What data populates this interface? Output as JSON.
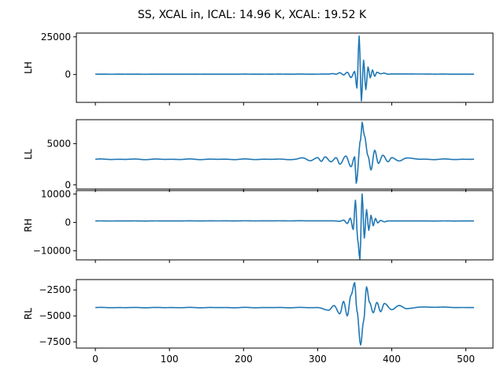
{
  "title": "SS, XCAL in, ICAL: 14.96 K, XCAL: 19.52 K",
  "chart_data": {
    "type": "line",
    "title": "SS, XCAL in, ICAL: 14.96 K, XCAL: 19.52 K",
    "line_color": "#1f77b4",
    "shared_x": {
      "xlim": [
        -25.6,
        536.6
      ],
      "ticks": [
        0,
        100,
        200,
        300,
        400,
        500
      ],
      "tick_labels": [
        "0",
        "100",
        "200",
        "300",
        "400",
        "500"
      ],
      "x_range": [
        0,
        511
      ]
    },
    "panels": [
      {
        "ylabel": "LH",
        "ylim": [
          -18500,
          27500
        ],
        "yticks": [
          0,
          25000
        ],
        "ytick_labels": [
          "0",
          "25000"
        ],
        "baseline": 200,
        "wiggle": 30,
        "x": [
          0,
          300,
          315,
          320,
          325,
          330,
          335,
          340,
          345,
          350,
          353,
          356,
          359,
          362,
          365,
          368,
          371,
          374,
          377,
          380,
          385,
          390,
          395,
          400,
          511
        ],
        "y": [
          200,
          250,
          300,
          600,
          200,
          1200,
          -300,
          1500,
          -2000,
          2000,
          -9000,
          25500,
          -17500,
          9500,
          -10000,
          5000,
          -2200,
          3000,
          -1200,
          1500,
          500,
          900,
          200,
          350,
          200
        ]
      },
      {
        "ylabel": "LL",
        "ylim": [
          -500,
          7900
        ],
        "yticks": [
          0,
          5000
        ],
        "ytick_labels": [
          "0",
          "5000"
        ],
        "baseline": 3100,
        "wiggle": 45,
        "x": [
          0,
          270,
          280,
          290,
          300,
          305,
          310,
          318,
          325,
          330,
          338,
          345,
          350,
          352,
          358,
          360,
          363,
          368,
          372,
          377,
          382,
          388,
          395,
          400,
          410,
          420,
          440,
          511
        ],
        "y": [
          3100,
          3100,
          3250,
          2950,
          3300,
          2850,
          3400,
          2800,
          3300,
          2500,
          3500,
          2200,
          3400,
          200,
          5500,
          7600,
          6000,
          3500,
          1800,
          4200,
          2600,
          3600,
          2800,
          3300,
          2900,
          3250,
          3100,
          3100
        ]
      },
      {
        "ylabel": "RH",
        "ylim": [
          -13200,
          11200
        ],
        "yticks": [
          -10000,
          0,
          10000
        ],
        "ytick_labels": [
          "−10000",
          "0",
          "10000"
        ],
        "baseline": 500,
        "wiggle": 25,
        "x": [
          0,
          320,
          330,
          335,
          340,
          344,
          348,
          351,
          354,
          357,
          360,
          363,
          366,
          369,
          372,
          375,
          378,
          381,
          385,
          390,
          395,
          511
        ],
        "y": [
          500,
          550,
          400,
          800,
          -400,
          1500,
          -2500,
          7800,
          -6000,
          -13000,
          10000,
          -5500,
          4500,
          -2800,
          2500,
          -1200,
          1400,
          -200,
          700,
          200,
          500,
          500
        ]
      },
      {
        "ylabel": "RL",
        "ylim": [
          -8100,
          -1500
        ],
        "yticks": [
          -7500,
          -5000,
          -2500
        ],
        "ytick_labels": [
          "−7500",
          "−5000",
          "−2500"
        ],
        "baseline": -4200,
        "wiggle": 20,
        "x": [
          0,
          300,
          315,
          322,
          330,
          335,
          340,
          345,
          350,
          353,
          358,
          362,
          366,
          370,
          375,
          380,
          385,
          390,
          400,
          410,
          420,
          440,
          511
        ],
        "y": [
          -4200,
          -4200,
          -4450,
          -4000,
          -4800,
          -3600,
          -5000,
          -3000,
          -1800,
          -4500,
          -7800,
          -5500,
          -2200,
          -3700,
          -4700,
          -3700,
          -4600,
          -3800,
          -4400,
          -4000,
          -4300,
          -4150,
          -4200
        ]
      }
    ]
  }
}
